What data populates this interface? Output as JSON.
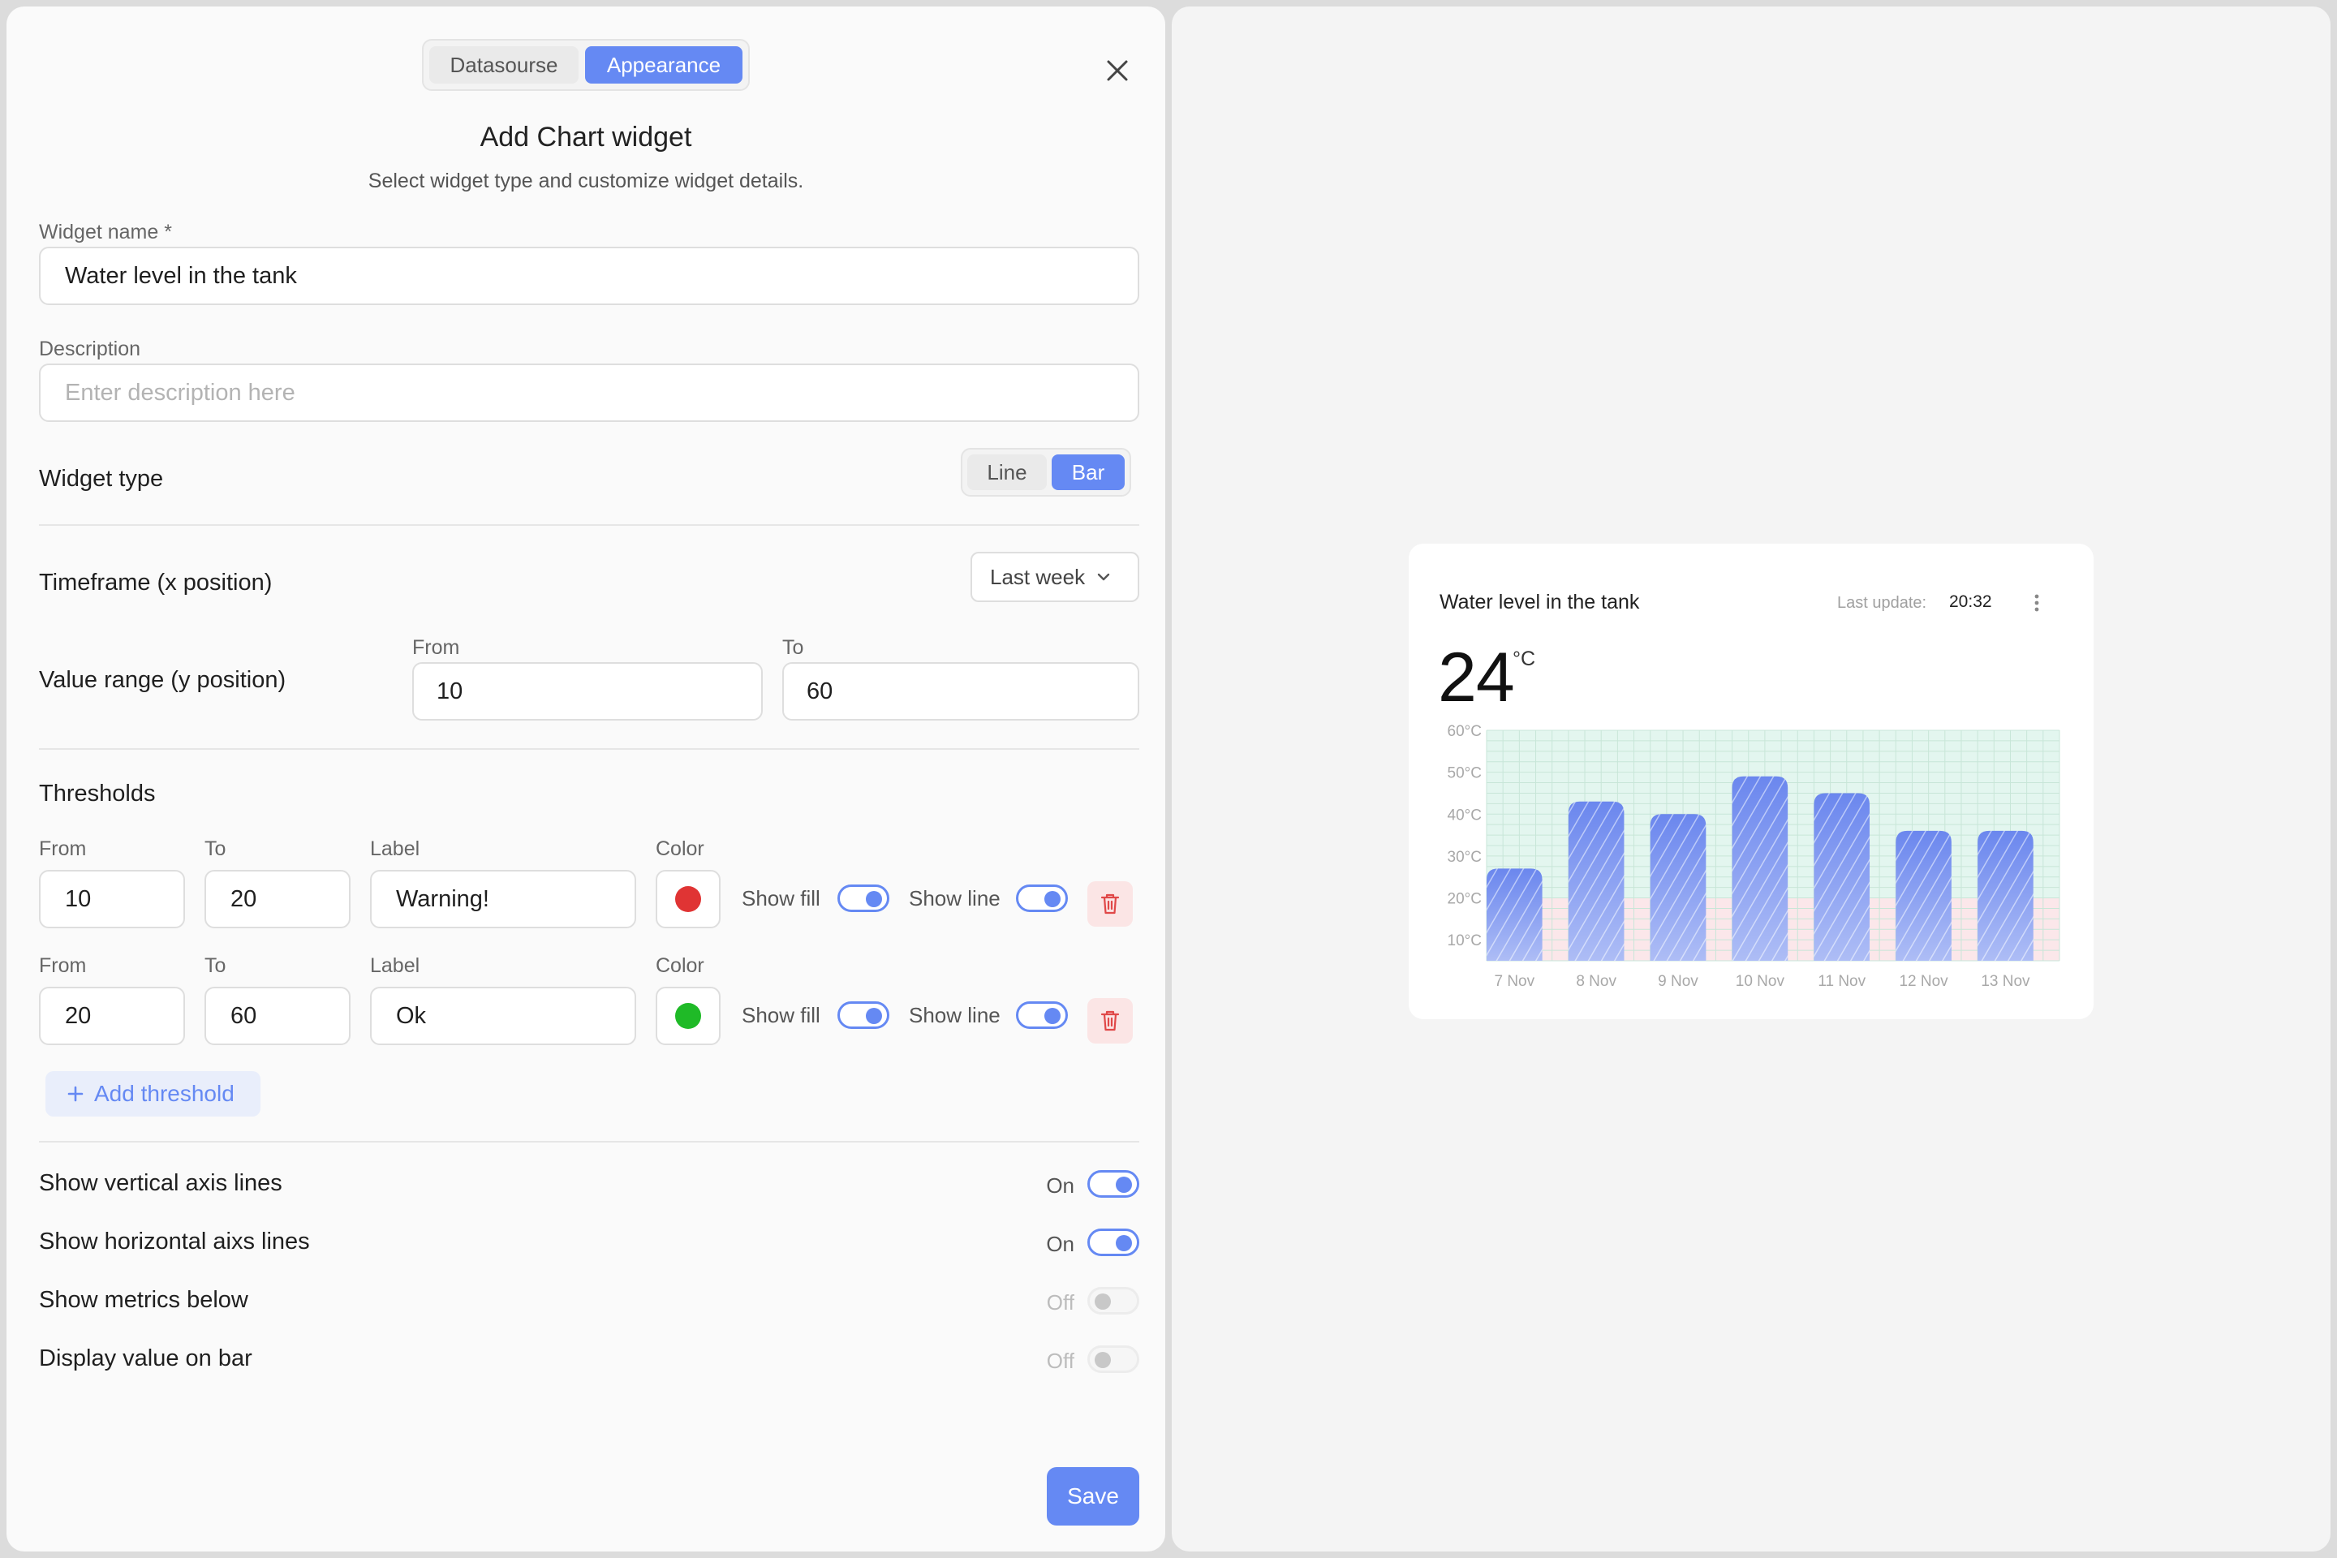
{
  "modal": {
    "tabs": [
      {
        "label": "Datasourse",
        "active": false
      },
      {
        "label": "Appearance",
        "active": true
      }
    ],
    "title": "Add Chart widget",
    "subtitle": "Select widget type and customize widget details.",
    "widget_name": {
      "label": "Widget name *",
      "value": "Water level in the tank"
    },
    "description": {
      "label": "Description",
      "placeholder": "Enter description here",
      "value": ""
    },
    "widget_type": {
      "label": "Widget type",
      "options": [
        "Line",
        "Bar"
      ],
      "selected": "Bar"
    },
    "timeframe": {
      "label": "Timeframe (x position)",
      "value": "Last week"
    },
    "value_range": {
      "label": "Value range (y position)",
      "from_label": "From",
      "to_label": "To",
      "from": "10",
      "to": "60"
    },
    "thresholds": {
      "label": "Thresholds",
      "col_from": "From",
      "col_to": "To",
      "col_label": "Label",
      "col_color": "Color",
      "show_fill_label": "Show fill",
      "show_line_label": "Show line",
      "items": [
        {
          "from": "10",
          "to": "20",
          "label": "Warning!",
          "color": "#e03434",
          "show_fill": true,
          "show_line": true
        },
        {
          "from": "20",
          "to": "60",
          "label": "Ok",
          "color": "#1fba27",
          "show_fill": true,
          "show_line": true
        }
      ],
      "add_label": "Add threshold"
    },
    "settings": [
      {
        "label": "Show vertical axis lines",
        "state": "On",
        "on": true
      },
      {
        "label": "Show horizontal aixs lines",
        "state": "On",
        "on": true
      },
      {
        "label": "Show metrics below",
        "state": "Off",
        "on": false
      },
      {
        "label": "Display value on bar",
        "state": "Off",
        "on": false
      }
    ],
    "save_label": "Save"
  },
  "preview": {
    "title": "Water level in the tank",
    "last_update_label": "Last update:",
    "last_update_time": "20:32",
    "value": "24",
    "unit": "°C",
    "colors": {
      "bar": "#6b87ee",
      "ok_zone": "#e3f6ef",
      "warning_zone": "#fbe7ea"
    },
    "chart_data": {
      "type": "bar",
      "categories": [
        "7 Nov",
        "8 Nov",
        "9 Nov",
        "10 Nov",
        "11 Nov",
        "12 Nov",
        "13 Nov"
      ],
      "values": [
        27,
        43,
        40,
        49,
        45,
        36,
        36
      ],
      "ylim": [
        5,
        60
      ],
      "yticks": [
        "10°C",
        "20°C",
        "30°C",
        "40°C",
        "50°C",
        "60°C"
      ],
      "ytick_values": [
        10,
        20,
        30,
        40,
        50,
        60
      ],
      "thresholds": [
        {
          "from": 10,
          "to": 20,
          "label": "Warning!"
        },
        {
          "from": 20,
          "to": 60,
          "label": "Ok"
        }
      ],
      "grid": true
    }
  }
}
